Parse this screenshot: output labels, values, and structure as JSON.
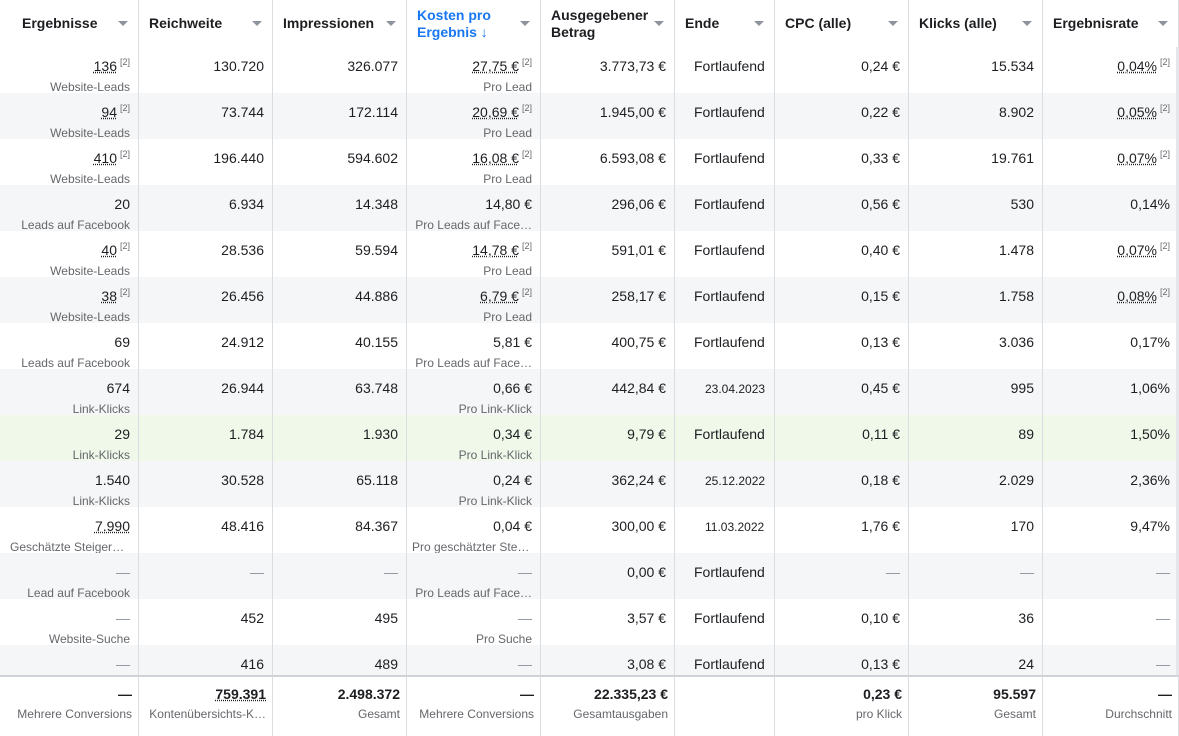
{
  "headers": [
    {
      "label": "Ergebnisse"
    },
    {
      "label": "Reichweite"
    },
    {
      "label": "Impressionen"
    },
    {
      "label": "Kosten pro Ergebnis ↓"
    },
    {
      "label": "Ausgegebener Betrag"
    },
    {
      "label": "Ende"
    },
    {
      "label": "CPC (alle)"
    },
    {
      "label": "Klicks (alle)"
    },
    {
      "label": "Ergebnisrate"
    }
  ],
  "footnote": "[2]",
  "rows": [
    {
      "ergebnisse": "136",
      "ergebnisse_sub": "Website-Leads",
      "reichweite": "130.720",
      "impressionen": "326.077",
      "kosten": "27,75 €",
      "kosten_sub": "Pro Lead",
      "betrag": "3.773,73 €",
      "ende": "Fortlaufend",
      "cpc": "0,24 €",
      "klicks": "15.534",
      "rate": "0,04%"
    },
    {
      "ergebnisse": "94",
      "ergebnisse_sub": "Website-Leads",
      "reichweite": "73.744",
      "impressionen": "172.114",
      "kosten": "20,69 €",
      "kosten_sub": "Pro Lead",
      "betrag": "1.945,00 €",
      "ende": "Fortlaufend",
      "cpc": "0,22 €",
      "klicks": "8.902",
      "rate": "0,05%"
    },
    {
      "ergebnisse": "410",
      "ergebnisse_sub": "Website-Leads",
      "reichweite": "196.440",
      "impressionen": "594.602",
      "kosten": "16,08 €",
      "kosten_sub": "Pro Lead",
      "betrag": "6.593,08 €",
      "ende": "Fortlaufend",
      "cpc": "0,33 €",
      "klicks": "19.761",
      "rate": "0,07%"
    },
    {
      "ergebnisse": "20",
      "ergebnisse_sub": "Leads auf Facebook",
      "reichweite": "6.934",
      "impressionen": "14.348",
      "kosten": "14,80 €",
      "kosten_sub": "Pro Leads auf Face…",
      "betrag": "296,06 €",
      "ende": "Fortlaufend",
      "cpc": "0,56 €",
      "klicks": "530",
      "rate": "0,14%"
    },
    {
      "ergebnisse": "40",
      "ergebnisse_sub": "Website-Leads",
      "reichweite": "28.536",
      "impressionen": "59.594",
      "kosten": "14,78 €",
      "kosten_sub": "Pro Lead",
      "betrag": "591,01 €",
      "ende": "Fortlaufend",
      "cpc": "0,40 €",
      "klicks": "1.478",
      "rate": "0,07%"
    },
    {
      "ergebnisse": "38",
      "ergebnisse_sub": "Website-Leads",
      "reichweite": "26.456",
      "impressionen": "44.886",
      "kosten": "6,79 €",
      "kosten_sub": "Pro Lead",
      "betrag": "258,17 €",
      "ende": "Fortlaufend",
      "cpc": "0,15 €",
      "klicks": "1.758",
      "rate": "0,08%"
    },
    {
      "ergebnisse": "69",
      "ergebnisse_sub": "Leads auf Facebook",
      "reichweite": "24.912",
      "impressionen": "40.155",
      "kosten": "5,81 €",
      "kosten_sub": "Pro Leads auf Face…",
      "betrag": "400,75 €",
      "ende": "Fortlaufend",
      "cpc": "0,13 €",
      "klicks": "3.036",
      "rate": "0,17%"
    },
    {
      "ergebnisse": "674",
      "ergebnisse_sub": "Link-Klicks",
      "reichweite": "26.944",
      "impressionen": "63.748",
      "kosten": "0,66 €",
      "kosten_sub": "Pro Link-Klick",
      "betrag": "442,84 €",
      "ende": "23.04.2023",
      "cpc": "0,45 €",
      "klicks": "995",
      "rate": "1,06%"
    },
    {
      "ergebnisse": "29",
      "ergebnisse_sub": "Link-Klicks",
      "reichweite": "1.784",
      "impressionen": "1.930",
      "kosten": "0,34 €",
      "kosten_sub": "Pro Link-Klick",
      "betrag": "9,79 €",
      "ende": "Fortlaufend",
      "cpc": "0,11 €",
      "klicks": "89",
      "rate": "1,50%"
    },
    {
      "ergebnisse": "1.540",
      "ergebnisse_sub": "Link-Klicks",
      "reichweite": "30.528",
      "impressionen": "65.118",
      "kosten": "0,24 €",
      "kosten_sub": "Pro Link-Klick",
      "betrag": "362,24 €",
      "ende": "25.12.2022",
      "cpc": "0,18 €",
      "klicks": "2.029",
      "rate": "2,36%"
    },
    {
      "ergebnisse": "7.990",
      "ergebnisse_sub": "Geschätzte Steigeru…",
      "reichweite": "48.416",
      "impressionen": "84.367",
      "kosten": "0,04 €",
      "kosten_sub": "Pro geschätzter Stei…",
      "betrag": "300,00 €",
      "ende": "11.03.2022",
      "cpc": "1,76 €",
      "klicks": "170",
      "rate": "9,47%"
    },
    {
      "ergebnisse": "—",
      "ergebnisse_sub": "Lead auf Facebook",
      "reichweite": "—",
      "impressionen": "—",
      "kosten": "—",
      "kosten_sub": "Pro Leads auf Face…",
      "betrag": "0,00 €",
      "ende": "Fortlaufend",
      "cpc": "—",
      "klicks": "—",
      "rate": "—"
    },
    {
      "ergebnisse": "—",
      "ergebnisse_sub": "Website-Suche",
      "reichweite": "452",
      "impressionen": "495",
      "kosten": "—",
      "kosten_sub": "Pro Suche",
      "betrag": "3,57 €",
      "ende": "Fortlaufend",
      "cpc": "0,10 €",
      "klicks": "36",
      "rate": "—"
    },
    {
      "ergebnisse": "—",
      "ergebnisse_sub": "",
      "reichweite": "416",
      "impressionen": "489",
      "kosten": "—",
      "kosten_sub": "",
      "betrag": "3,08 €",
      "ende": "Fortlaufend",
      "cpc": "0,13 €",
      "klicks": "24",
      "rate": "—"
    }
  ],
  "footer": {
    "ergebnisse": "—",
    "ergebnisse_sub": "Mehrere Conversions",
    "reichweite": "759.391",
    "reichweite_sub": "Kontenübersichts-K…",
    "impressionen": "2.498.372",
    "impressionen_sub": "Gesamt",
    "kosten": "—",
    "kosten_sub": "Mehrere Conversions",
    "betrag": "22.335,23 €",
    "betrag_sub": "Gesamtausgaben",
    "cpc": "0,23 €",
    "cpc_sub": "pro Klick",
    "klicks": "95.597",
    "klicks_sub": "Gesamt",
    "rate": "—",
    "rate_sub": "Durchschnitt"
  }
}
